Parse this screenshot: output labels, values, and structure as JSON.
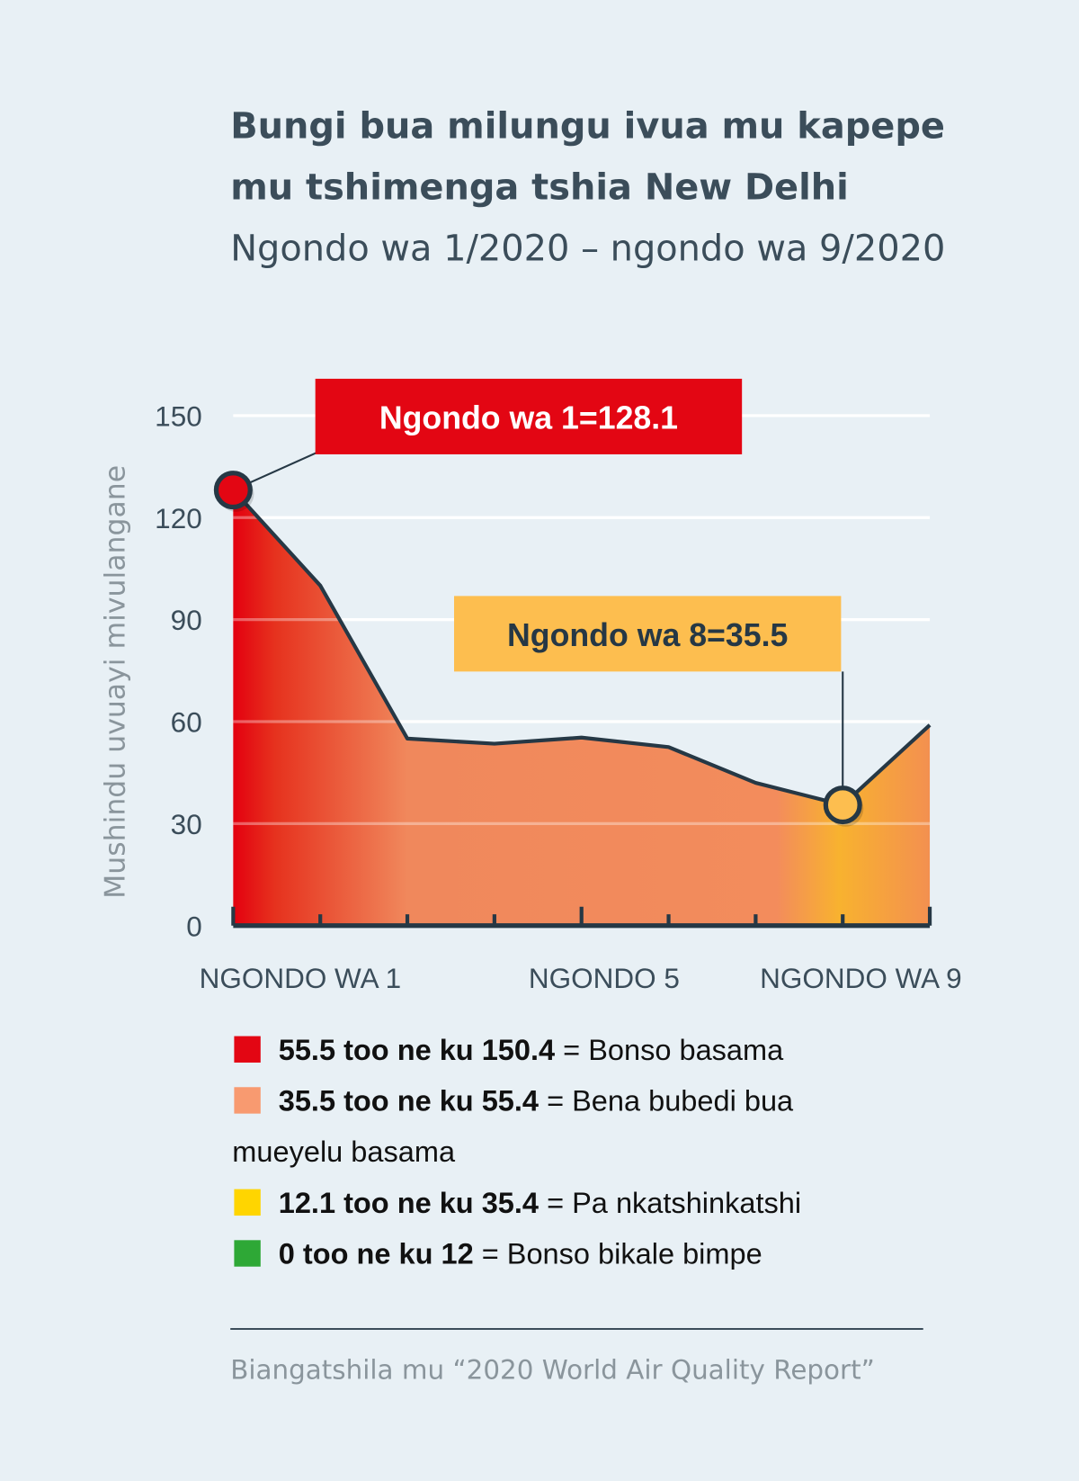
{
  "chart_data": {
    "type": "area",
    "title": "Bungi bua milungu ivua mu kapepe mu tshimenga tshia New Delhi",
    "title_lines": [
      "Bungi bua milungu ivua mu kapepe",
      "mu tshimenga tshia New Delhi"
    ],
    "subtitle": "Ngondo wa 1/2020 – ngondo wa 9/2020",
    "ylabel": "Mushindu uvuayi mivulangane",
    "ylim": [
      0,
      150
    ],
    "yticks": [
      "0",
      "30",
      "60",
      "90",
      "120",
      "150"
    ],
    "xtick_labels": [
      "NGONDO WA 1",
      "NGONDO 5",
      "NGONDO WA 9"
    ],
    "x": [
      1,
      2,
      3,
      4,
      5,
      6,
      7,
      8,
      9
    ],
    "values": [
      128.1,
      100,
      55,
      53.5,
      55.3,
      52.5,
      42,
      35.5,
      59
    ],
    "grid": true,
    "annotations": [
      {
        "label": "Ngondo wa 1=128.1",
        "month": 1,
        "color": "#e30613"
      },
      {
        "label": "Ngondo wa 8=35.5",
        "month": 8,
        "color": "#fdbe4f"
      }
    ],
    "legend": [
      {
        "range": "55.5 too ne ku 150.4",
        "text": " = Bonso basama",
        "color": "#e30613"
      },
      {
        "range": "35.5 too ne ku 55.4",
        "text": " = Bena bubedi bua",
        "text2": "mueyelu basama",
        "color": "#f89a70"
      },
      {
        "range": "12.1 too ne ku 35.4",
        "text": " = Pa nkatshinkatshi",
        "color": "#ffd500"
      },
      {
        "range": "0 too ne ku 12",
        "text": " = Bonso bikale bimpe",
        "color": "#2ea836"
      }
    ],
    "source": "Biangatshila mu “2020 World Air Quality Report”"
  }
}
